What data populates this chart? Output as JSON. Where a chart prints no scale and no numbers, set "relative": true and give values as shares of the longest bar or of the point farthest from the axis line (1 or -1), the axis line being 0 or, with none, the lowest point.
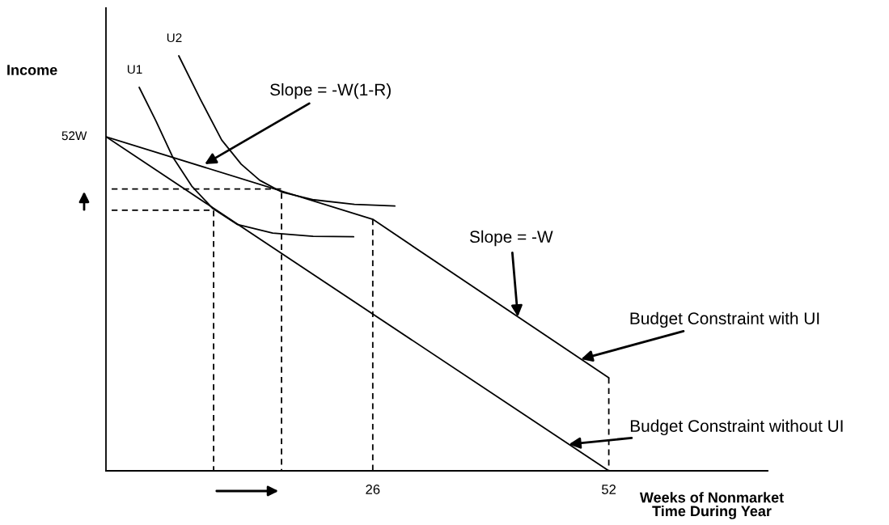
{
  "chart_data": {
    "type": "line",
    "relative": true,
    "ylabel": "Income",
    "xlabel": "Weeks of Nonmarket\nTime During Year",
    "xlim": [
      -3.39,
      69.5
    ],
    "xticks": [
      26,
      52
    ],
    "grid": false,
    "marker": "none",
    "series": [
      {
        "x": [
          -3.39,
          52
        ],
        "values": [
          0.805,
          0
        ],
        "color": "#000000",
        "line_style": "solid"
      },
      {
        "x": [
          -3.39,
          26,
          52
        ],
        "values": [
          0.805,
          0.606,
          0.224
        ],
        "color": "#000000",
        "line_style": "solid"
      },
      {
        "name": "U1",
        "x": [
          0.27,
          2.14,
          3.92,
          6.06,
          8.38,
          11.05,
          14.97,
          19.43,
          23.89
        ],
        "values": [
          0.924,
          0.842,
          0.758,
          0.686,
          0.632,
          0.594,
          0.573,
          0.565,
          0.564
        ],
        "color": "#000000",
        "line_style": "solid"
      },
      {
        "name": "U2",
        "x": [
          4.63,
          7.04,
          9.36,
          11.5,
          13.55,
          15.95,
          19.52,
          23.98,
          28.43
        ],
        "values": [
          1,
          0.894,
          0.797,
          0.739,
          0.7,
          0.672,
          0.653,
          0.642,
          0.638
        ],
        "color": "#000000",
        "line_style": "solid"
      },
      {
        "x": [
          -2.76,
          8.47,
          8.47
        ],
        "values": [
          0.628,
          0.628,
          0
        ],
        "color": "#000000",
        "line_style": "dashed"
      },
      {
        "x": [
          -2.76,
          15.95,
          15.95
        ],
        "values": [
          0.679,
          0.679,
          0
        ],
        "color": "#000000",
        "line_style": "dashed"
      },
      {
        "x": [
          26,
          26
        ],
        "values": [
          0.606,
          0
        ],
        "color": "#000000",
        "line_style": "dashed"
      },
      {
        "x": [
          52,
          52
        ],
        "values": [
          0.224,
          0
        ],
        "color": "#000000",
        "line_style": "dashed"
      }
    ],
    "annotations": [
      {
        "text": "52W",
        "x": -3.39,
        "y": 0.805
      },
      {
        "text": "Slope = -W(1-R)",
        "x": 7.49,
        "y": 0.739
      },
      {
        "text": "Slope = -W",
        "x": 41.98,
        "y": 0.371
      },
      {
        "text": "Budget Constraint with UI",
        "x": 48.93,
        "y": 0.269
      },
      {
        "text": "Budget Constraint without UI",
        "x": 47.6,
        "y": 0.064
      }
    ]
  }
}
